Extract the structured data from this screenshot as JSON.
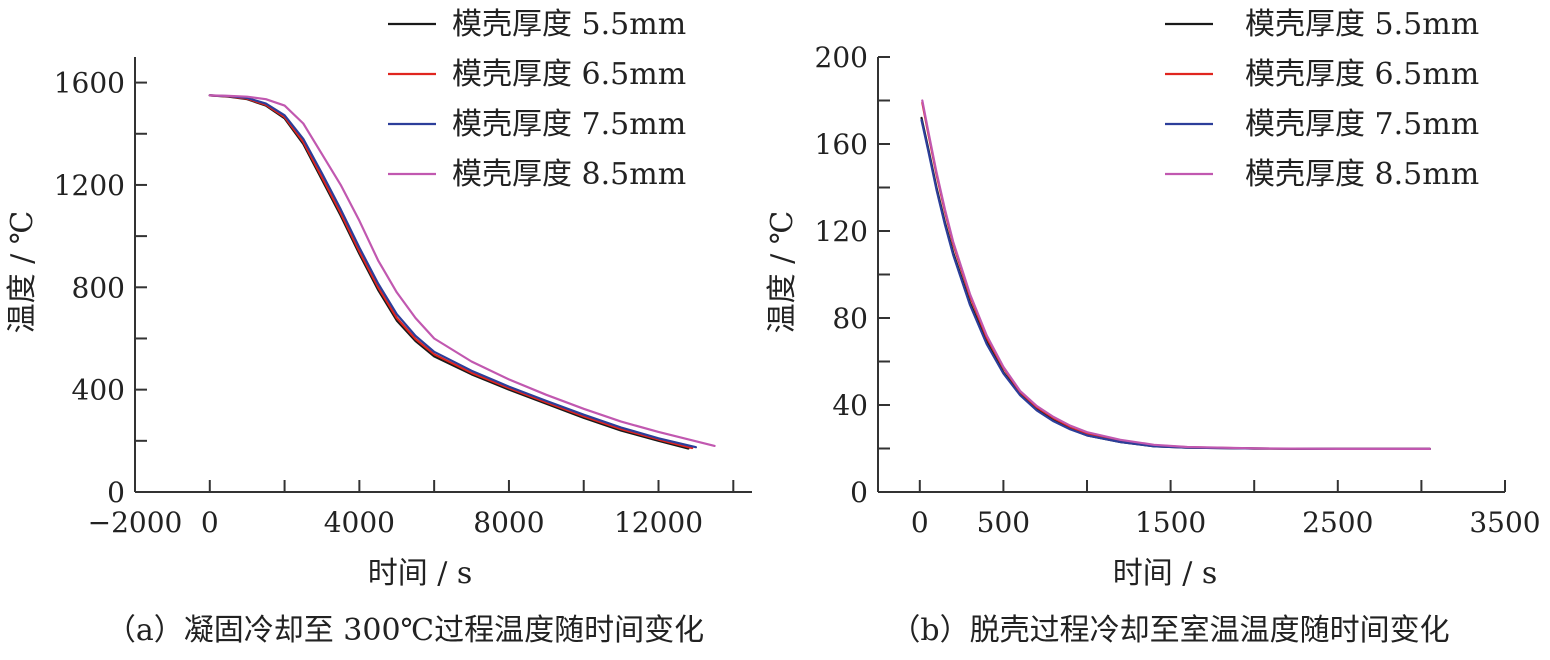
{
  "chart_data": [
    {
      "type": "line",
      "panel": "a",
      "caption": "（a）凝固冷却至 300℃过程温度随时间变化",
      "xlabel": "时间 / s",
      "ylabel": "温度 / ℃",
      "xlim": [
        -2000,
        14500
      ],
      "ylim": [
        0,
        1700
      ],
      "xticks": [
        -2000,
        0,
        4000,
        8000,
        12000
      ],
      "xtick_labels": [
        "−2000",
        "0",
        "4000",
        "8000",
        "12000"
      ],
      "xminor": [
        2000,
        6000,
        10000,
        14000
      ],
      "yticks": [
        0,
        400,
        800,
        1200,
        1600
      ],
      "ytick_labels": [
        "0",
        "400",
        "800",
        "1200",
        "1600"
      ],
      "yminor": [
        200,
        600,
        1000,
        1400
      ],
      "legend_position": "top-right",
      "series": [
        {
          "name": "模壳厚度 5.5mm",
          "color": "#1a1a1a",
          "x": [
            0,
            500,
            1000,
            1500,
            2000,
            2500,
            3000,
            3500,
            4000,
            4500,
            5000,
            5500,
            6000,
            7000,
            8000,
            9000,
            10000,
            11000,
            12000,
            12800
          ],
          "y": [
            1550,
            1545,
            1535,
            1510,
            1460,
            1360,
            1220,
            1080,
            930,
            790,
            670,
            590,
            530,
            460,
            400,
            345,
            290,
            240,
            200,
            170
          ]
        },
        {
          "name": "模壳厚度 6.5mm",
          "color": "#e0251f",
          "x": [
            0,
            500,
            1000,
            1500,
            2000,
            2500,
            3000,
            3500,
            4000,
            4500,
            5000,
            5500,
            6000,
            7000,
            8000,
            9000,
            10000,
            11000,
            12000,
            12900
          ],
          "y": [
            1550,
            1546,
            1537,
            1513,
            1465,
            1368,
            1230,
            1090,
            940,
            800,
            680,
            598,
            538,
            466,
            406,
            350,
            296,
            246,
            205,
            172
          ]
        },
        {
          "name": "模壳厚度 7.5mm",
          "color": "#2c3e9a",
          "x": [
            0,
            500,
            1000,
            1500,
            2000,
            2500,
            3000,
            3500,
            4000,
            4500,
            5000,
            5500,
            6000,
            7000,
            8000,
            9000,
            10000,
            11000,
            12000,
            13000
          ],
          "y": [
            1550,
            1547,
            1540,
            1518,
            1472,
            1380,
            1245,
            1105,
            955,
            815,
            695,
            610,
            548,
            474,
            412,
            356,
            302,
            252,
            210,
            175
          ]
        },
        {
          "name": "模壳厚度 8.5mm",
          "color": "#c158b0",
          "x": [
            0,
            500,
            1000,
            1500,
            2000,
            2500,
            3000,
            3500,
            4000,
            4500,
            5000,
            5500,
            6000,
            7000,
            8000,
            9000,
            10000,
            11000,
            12000,
            13500
          ],
          "y": [
            1550,
            1548,
            1545,
            1535,
            1510,
            1440,
            1320,
            1200,
            1060,
            905,
            780,
            680,
            600,
            510,
            440,
            380,
            325,
            275,
            235,
            180
          ]
        }
      ]
    },
    {
      "type": "line",
      "panel": "b",
      "caption": "（b）脱壳过程冷却至室温温度随时间变化",
      "xlabel": "时间 / s",
      "ylabel": "温度 / ℃",
      "xlim": [
        -250,
        3500
      ],
      "ylim": [
        0,
        200
      ],
      "xticks": [
        0,
        500,
        1500,
        2500,
        3500
      ],
      "xtick_labels": [
        "0",
        "500",
        "1500",
        "2500",
        "3500"
      ],
      "xminor": [
        1000,
        2000,
        3000
      ],
      "yticks": [
        0,
        40,
        80,
        120,
        160,
        200
      ],
      "ytick_labels": [
        "0",
        "40",
        "80",
        "120",
        "160",
        "200"
      ],
      "yminor": [
        20,
        60,
        100,
        140,
        180
      ],
      "legend_position": "top-right",
      "series": [
        {
          "name": "模壳厚度 5.5mm",
          "color": "#1a1a1a",
          "x": [
            10,
            50,
            100,
            150,
            200,
            300,
            400,
            500,
            600,
            700,
            800,
            900,
            1000,
            1200,
            1400,
            1600,
            2000,
            2500,
            3050
          ],
          "y": [
            172,
            158,
            140,
            124,
            110,
            87,
            69,
            55,
            45,
            38,
            33,
            29,
            26,
            23,
            21,
            20.4,
            20,
            19.8,
            19.8
          ]
        },
        {
          "name": "模壳厚度 6.5mm",
          "color": "#e0251f",
          "x": [
            15,
            50,
            100,
            150,
            200,
            300,
            400,
            500,
            600,
            700,
            800,
            900,
            1000,
            1200,
            1400,
            1600,
            2000,
            2500,
            3050
          ],
          "y": [
            179,
            165,
            146,
            129,
            114,
            90,
            71,
            57,
            46,
            39,
            34,
            30,
            27,
            23.5,
            21.5,
            20.6,
            20,
            19.8,
            19.8
          ]
        },
        {
          "name": "模壳厚度 7.5mm",
          "color": "#2c3e9a",
          "x": [
            10,
            50,
            100,
            150,
            200,
            300,
            400,
            500,
            600,
            700,
            800,
            900,
            1000,
            1200,
            1400,
            1600,
            2000,
            2500,
            3050
          ],
          "y": [
            171,
            157,
            139,
            123,
            109,
            86,
            68,
            54.5,
            44.5,
            37.5,
            32.5,
            28.8,
            26,
            23,
            21,
            20.4,
            20,
            19.8,
            19.8
          ]
        },
        {
          "name": "模壳厚度 8.5mm",
          "color": "#c158b0",
          "x": [
            15,
            50,
            100,
            150,
            200,
            300,
            400,
            500,
            600,
            700,
            800,
            900,
            1000,
            1200,
            1400,
            1600,
            2000,
            2500,
            3050
          ],
          "y": [
            180,
            166,
            147,
            130,
            115,
            91,
            72,
            57.5,
            46.5,
            39.5,
            34.5,
            30.5,
            27.5,
            24,
            21.7,
            20.7,
            20.1,
            19.8,
            19.8
          ]
        }
      ]
    }
  ]
}
